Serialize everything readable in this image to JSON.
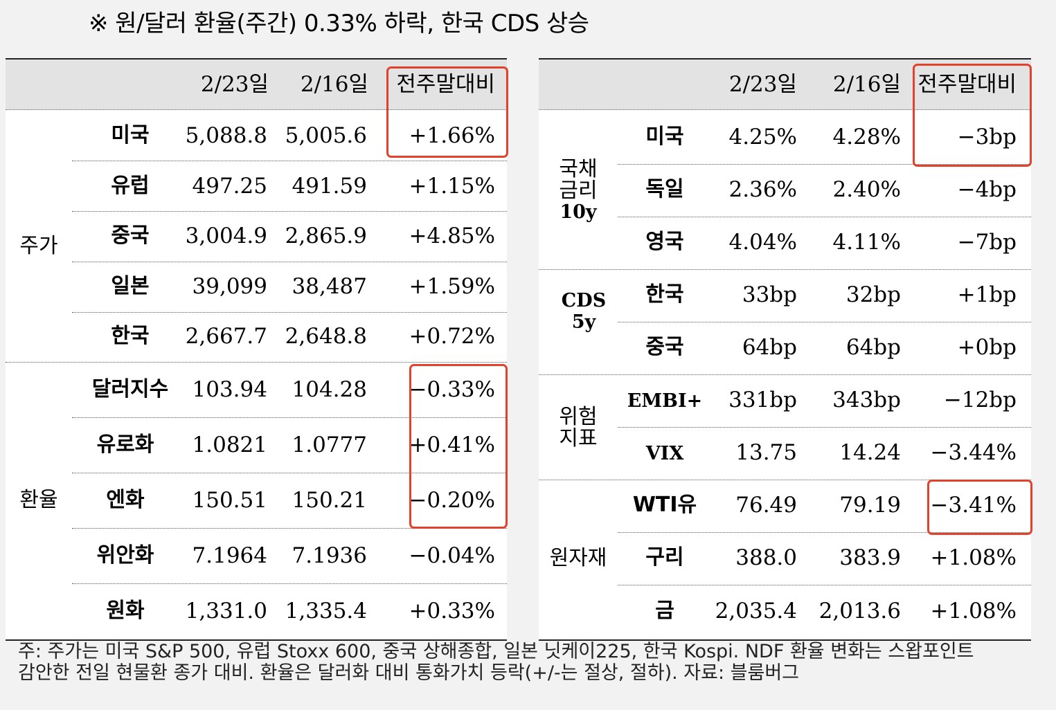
{
  "title": "※ 원/달러 환율(주간) 0.33% 하락, 한국 CDS 상승",
  "left_table": {
    "headers": [
      "2/23일",
      "2/16일",
      "전주말대비"
    ],
    "groups": [
      {
        "label": "주가",
        "rows": [
          {
            "name": "미국",
            "cur": "5,088.8",
            "prev": "5,005.6",
            "chg": "+1.66%"
          },
          {
            "name": "유럽",
            "cur": "497.25",
            "prev": "491.59",
            "chg": "+1.15%"
          },
          {
            "name": "중국",
            "cur": "3,004.9",
            "prev": "2,865.9",
            "chg": "+4.85%"
          },
          {
            "name": "일본",
            "cur": "39,099",
            "prev": "38,487",
            "chg": "+1.59%"
          },
          {
            "name": "한국",
            "cur": "2,667.7",
            "prev": "2,648.8",
            "chg": "+0.72%"
          }
        ]
      },
      {
        "label": "환율",
        "rows": [
          {
            "name": "달러지수",
            "cur": "103.94",
            "prev": "104.28",
            "chg": "−0.33%"
          },
          {
            "name": "유로화",
            "cur": "1.0821",
            "prev": "1.0777",
            "chg": "+0.41%"
          },
          {
            "name": "엔화",
            "cur": "150.51",
            "prev": "150.21",
            "chg": "−0.20%"
          },
          {
            "name": "위안화",
            "cur": "7.1964",
            "prev": "7.1936",
            "chg": "−0.04%"
          },
          {
            "name": "원화",
            "cur": "1,331.0",
            "prev": "1,335.4",
            "chg": "+0.33%"
          }
        ]
      }
    ]
  },
  "right_table": {
    "headers": [
      "2/23일",
      "2/16일",
      "전주말대비"
    ],
    "groups": [
      {
        "label": [
          "국채",
          "금리",
          "10y"
        ],
        "rows": [
          {
            "name": "미국",
            "cur": "4.25%",
            "prev": "4.28%",
            "chg": "−3bp"
          },
          {
            "name": "독일",
            "cur": "2.36%",
            "prev": "2.40%",
            "chg": "−4bp"
          },
          {
            "name": "영국",
            "cur": "4.04%",
            "prev": "4.11%",
            "chg": "−7bp"
          }
        ]
      },
      {
        "label": [
          "CDS",
          "5y"
        ],
        "rows": [
          {
            "name": "한국",
            "cur": "33bp",
            "prev": "32bp",
            "chg": "+1bp"
          },
          {
            "name": "중국",
            "cur": "64bp",
            "prev": "64bp",
            "chg": "+0bp"
          }
        ]
      },
      {
        "label": [
          "위험",
          "지표"
        ],
        "rows": [
          {
            "name": "EMBI+",
            "cur": "331bp",
            "prev": "343bp",
            "chg": "−12bp"
          },
          {
            "name": "VIX",
            "cur": "13.75",
            "prev": "14.24",
            "chg": "−3.44%"
          }
        ]
      },
      {
        "label": [
          "원자재"
        ],
        "rows": [
          {
            "name": "WTI유",
            "cur": "76.49",
            "prev": "79.19",
            "chg": "−3.41%"
          },
          {
            "name": "구리",
            "cur": "388.0",
            "prev": "383.9",
            "chg": "+1.08%"
          },
          {
            "name": "금",
            "cur": "2,035.4",
            "prev": "2,013.6",
            "chg": "+1.08%"
          }
        ]
      }
    ]
  },
  "footnote": [
    "주: 주가는 미국 S&P 500, 유럽 Stoxx 600, 중국 상해종합, 일본 닛케이225, 한국 Kospi. NDF 환율 변화는 스왑포인트",
    "감안한 전일 현물환 종가 대비. 환율은 달러화 대비 통화가치 등락(+/-는 절상, 절하). 자료: 블룸버그"
  ],
  "highlight_color": "#e2412b"
}
